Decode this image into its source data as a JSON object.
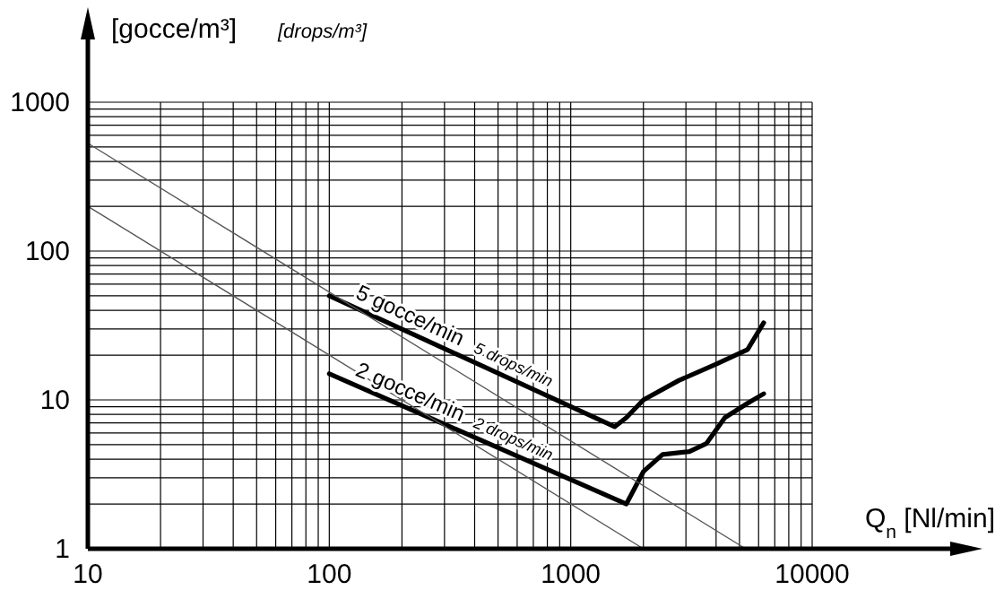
{
  "chart_data": {
    "type": "line",
    "xlabel": "Q$_{n}$ [Nl/min]",
    "ylabel": "[gocce/m³]",
    "log": "xy",
    "grid": true,
    "line_style": "solid",
    "xlim": [
      10,
      10000
    ],
    "xticks": [
      10,
      100,
      1000,
      10000
    ],
    "ylim": [
      1,
      1000
    ],
    "yticks": [
      1,
      10,
      100,
      1000
    ],
    "series": [
      {
        "color": "#000000",
        "x": [
          100,
          1520,
          1700,
          2000,
          2800,
          4000,
          5400,
          6300
        ],
        "values": [
          50,
          6.6,
          7.6,
          10,
          13.5,
          17.4,
          21.8,
          33
        ]
      },
      {
        "color": "#000000",
        "x": [
          100,
          1700,
          2000,
          2400,
          3100,
          3650,
          4350,
          5400,
          6300
        ],
        "values": [
          15,
          2,
          3.3,
          4.3,
          4.5,
          5.1,
          7.6,
          9.5,
          11
        ]
      },
      {
        "color": "#555555",
        "x": [
          10,
          5300
        ],
        "values": [
          530,
          1
        ]
      },
      {
        "color": "#555555",
        "x": [
          10,
          2000
        ],
        "values": [
          200,
          1
        ]
      }
    ],
    "annotations": [
      "[drops/m³]",
      "5 gocce/min",
      "5 drops/min",
      "2 gocce/min",
      "2 drops/min"
    ]
  }
}
